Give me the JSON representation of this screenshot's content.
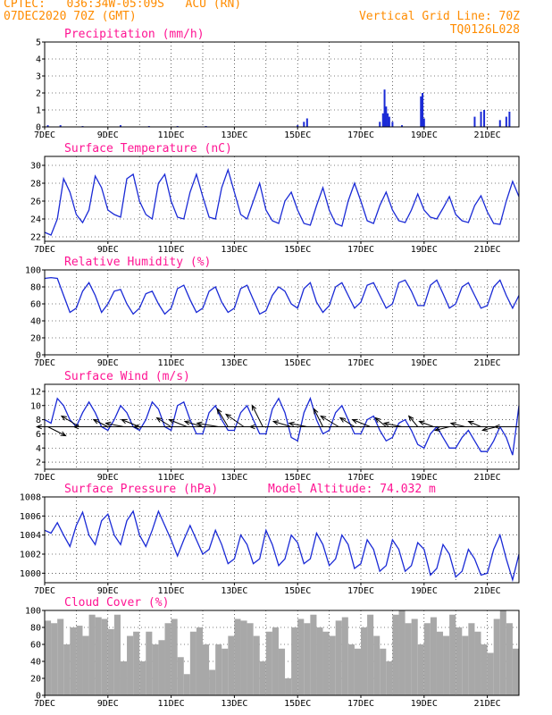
{
  "header": {
    "line1": "CPTEC:   036:34W-05:09S   ACU (RN)",
    "line2": "07DEC2020 70Z (GMT)",
    "right1": "Vertical Grid Line: 70Z",
    "right2": "TQ0126L028"
  },
  "colors": {
    "header": "#ff8c00",
    "title": "#ff1493",
    "series": "#1a2ad6",
    "cloud": "#a8a8a8",
    "arrow": "#000000"
  },
  "chart_data": [
    {
      "type": "bar",
      "title": "Precipitation (mm/h)",
      "xticks": [
        "7DEC",
        "9DEC",
        "11DEC",
        "13DEC",
        "15DEC",
        "17DEC",
        "19DEC",
        "21DEC"
      ],
      "ylim": [
        0,
        5
      ],
      "yticks": [
        0,
        1,
        2,
        3,
        4,
        5
      ],
      "x": [
        7.1,
        7.5,
        8.2,
        9.4,
        10.3,
        11.2,
        12.1,
        15.0,
        15.2,
        15.3,
        17.6,
        17.7,
        17.75,
        17.8,
        17.85,
        17.9,
        18.0,
        18.3,
        18.9,
        18.95,
        19.0,
        20.6,
        20.8,
        20.9,
        21.4,
        21.6,
        21.7
      ],
      "values": [
        0.1,
        0.1,
        0.05,
        0.1,
        0.05,
        0.05,
        0.05,
        0.1,
        0.3,
        0.5,
        0.3,
        0.8,
        2.2,
        1.2,
        0.8,
        0.6,
        0.3,
        0.1,
        1.8,
        2.0,
        0.5,
        0.6,
        0.9,
        1.0,
        0.4,
        0.6,
        0.9
      ]
    },
    {
      "type": "line",
      "title": "Surface Temperature (nC)",
      "xticks": [
        "7DEC",
        "9DEC",
        "11DEC",
        "13DEC",
        "15DEC",
        "17DEC",
        "19DEC",
        "21DEC"
      ],
      "ylim": [
        21.5,
        31
      ],
      "yticks": [
        22,
        24,
        26,
        28,
        30
      ],
      "x": [
        7.0,
        7.2,
        7.4,
        7.6,
        7.8,
        8.0,
        8.2,
        8.4,
        8.6,
        8.8,
        9.0,
        9.2,
        9.4,
        9.6,
        9.8,
        10.0,
        10.2,
        10.4,
        10.6,
        10.8,
        11.0,
        11.2,
        11.4,
        11.6,
        11.8,
        12.0,
        12.2,
        12.4,
        12.6,
        12.8,
        13.0,
        13.2,
        13.4,
        13.6,
        13.8,
        14.0,
        14.2,
        14.4,
        14.6,
        14.8,
        15.0,
        15.2,
        15.4,
        15.6,
        15.8,
        16.0,
        16.2,
        16.4,
        16.6,
        16.8,
        17.0,
        17.2,
        17.4,
        17.6,
        17.8,
        18.0,
        18.2,
        18.4,
        18.6,
        18.8,
        19.0,
        19.2,
        19.4,
        19.6,
        19.8,
        20.0,
        20.2,
        20.4,
        20.6,
        20.8,
        21.0,
        21.2,
        21.4,
        21.6,
        21.8,
        22.0
      ],
      "values": [
        22.5,
        22.2,
        24,
        28.5,
        27,
        24.5,
        23.6,
        25,
        28.8,
        27.5,
        25,
        24.5,
        24.2,
        28.5,
        29,
        26,
        24.5,
        24,
        28,
        29,
        26,
        24.2,
        24,
        27,
        29,
        26.5,
        24.2,
        24,
        27.5,
        29.5,
        27,
        24.5,
        24,
        26,
        28,
        25,
        23.8,
        23.5,
        26,
        27,
        25,
        23.5,
        23.3,
        25.5,
        27.5,
        25,
        23.5,
        23.2,
        26,
        28,
        26,
        23.8,
        23.5,
        25.5,
        27,
        25,
        23.8,
        23.6,
        25,
        26.8,
        25,
        24.2,
        24,
        25.2,
        26.5,
        24.5,
        23.8,
        23.6,
        25.5,
        26.6,
        24.8,
        23.5,
        23.4,
        26,
        28.2,
        26.5
      ]
    },
    {
      "type": "line",
      "title": "Relative Humidity (%)",
      "xticks": [
        "7DEC",
        "9DEC",
        "11DEC",
        "13DEC",
        "15DEC",
        "17DEC",
        "19DEC",
        "21DEC"
      ],
      "ylim": [
        0,
        100
      ],
      "yticks": [
        0,
        20,
        40,
        60,
        80,
        100
      ],
      "x": [
        7.0,
        7.2,
        7.4,
        7.6,
        7.8,
        8.0,
        8.2,
        8.4,
        8.6,
        8.8,
        9.0,
        9.2,
        9.4,
        9.6,
        9.8,
        10.0,
        10.2,
        10.4,
        10.6,
        10.8,
        11.0,
        11.2,
        11.4,
        11.6,
        11.8,
        12.0,
        12.2,
        12.4,
        12.6,
        12.8,
        13.0,
        13.2,
        13.4,
        13.6,
        13.8,
        14.0,
        14.2,
        14.4,
        14.6,
        14.8,
        15.0,
        15.2,
        15.4,
        15.6,
        15.8,
        16.0,
        16.2,
        16.4,
        16.6,
        16.8,
        17.0,
        17.2,
        17.4,
        17.6,
        17.8,
        18.0,
        18.2,
        18.4,
        18.6,
        18.8,
        19.0,
        19.2,
        19.4,
        19.6,
        19.8,
        20.0,
        20.2,
        20.4,
        20.6,
        20.8,
        21.0,
        21.2,
        21.4,
        21.6,
        21.8,
        22.0
      ],
      "values": [
        90,
        91,
        90,
        70,
        50,
        55,
        75,
        85,
        70,
        50,
        60,
        75,
        77,
        60,
        48,
        55,
        72,
        75,
        60,
        48,
        55,
        78,
        82,
        65,
        50,
        55,
        75,
        80,
        62,
        50,
        55,
        78,
        82,
        65,
        48,
        52,
        70,
        80,
        75,
        60,
        55,
        78,
        85,
        62,
        50,
        58,
        80,
        85,
        70,
        55,
        62,
        82,
        85,
        70,
        55,
        60,
        85,
        88,
        75,
        58,
        58,
        82,
        88,
        72,
        55,
        60,
        80,
        85,
        70,
        55,
        58,
        80,
        88,
        70,
        55,
        70
      ]
    },
    {
      "type": "line",
      "title": "Surface Wind (m/s)",
      "xticks": [
        "7DEC",
        "9DEC",
        "11DEC",
        "13DEC",
        "15DEC",
        "17DEC",
        "19DEC",
        "21DEC"
      ],
      "ylim": [
        1,
        13
      ],
      "yticks": [
        2,
        4,
        6,
        8,
        10,
        12
      ],
      "x": [
        7.0,
        7.2,
        7.4,
        7.6,
        7.8,
        8.0,
        8.2,
        8.4,
        8.6,
        8.8,
        9.0,
        9.2,
        9.4,
        9.6,
        9.8,
        10.0,
        10.2,
        10.4,
        10.6,
        10.8,
        11.0,
        11.2,
        11.4,
        11.6,
        11.8,
        12.0,
        12.2,
        12.4,
        12.6,
        12.8,
        13.0,
        13.2,
        13.4,
        13.6,
        13.8,
        14.0,
        14.2,
        14.4,
        14.6,
        14.8,
        15.0,
        15.2,
        15.4,
        15.6,
        15.8,
        16.0,
        16.2,
        16.4,
        16.6,
        16.8,
        17.0,
        17.2,
        17.4,
        17.6,
        17.8,
        18.0,
        18.2,
        18.4,
        18.6,
        18.8,
        19.0,
        19.2,
        19.4,
        19.6,
        19.8,
        20.0,
        20.2,
        20.4,
        20.6,
        20.8,
        21.0,
        21.2,
        21.4,
        21.6,
        21.8,
        22.0
      ],
      "values": [
        8,
        7.5,
        11,
        10,
        8,
        7,
        9,
        10.5,
        9,
        7,
        6.5,
        8,
        10,
        9,
        7,
        6.5,
        8,
        10.5,
        9.5,
        7,
        6.5,
        10,
        10.5,
        8,
        6,
        6,
        9,
        10,
        8,
        6.5,
        6.5,
        9,
        10,
        8,
        6,
        6,
        9.5,
        11,
        9,
        5.5,
        5,
        9,
        11,
        8,
        6,
        6.5,
        9,
        10,
        8,
        6,
        6,
        8,
        8.5,
        6.5,
        5,
        5.5,
        7.5,
        8,
        6.5,
        4.5,
        4,
        6,
        7,
        5.5,
        4,
        4,
        5.5,
        6.5,
        5,
        3.5,
        3.5,
        5,
        7,
        5.5,
        3,
        10
      ]
    },
    {
      "type": "line",
      "title": "Surface Pressure (hPa)",
      "note": "Model Altitude: 74.032 m",
      "xticks": [
        "7DEC",
        "9DEC",
        "11DEC",
        "13DEC",
        "15DEC",
        "17DEC",
        "19DEC",
        "21DEC"
      ],
      "ylim": [
        999,
        1008
      ],
      "yticks": [
        1000,
        1002,
        1004,
        1006,
        1008
      ],
      "x": [
        7.0,
        7.2,
        7.4,
        7.6,
        7.8,
        8.0,
        8.2,
        8.4,
        8.6,
        8.8,
        9.0,
        9.2,
        9.4,
        9.6,
        9.8,
        10.0,
        10.2,
        10.4,
        10.6,
        10.8,
        11.0,
        11.2,
        11.4,
        11.6,
        11.8,
        12.0,
        12.2,
        12.4,
        12.6,
        12.8,
        13.0,
        13.2,
        13.4,
        13.6,
        13.8,
        14.0,
        14.2,
        14.4,
        14.6,
        14.8,
        15.0,
        15.2,
        15.4,
        15.6,
        15.8,
        16.0,
        16.2,
        16.4,
        16.6,
        16.8,
        17.0,
        17.2,
        17.4,
        17.6,
        17.8,
        18.0,
        18.2,
        18.4,
        18.6,
        18.8,
        19.0,
        19.2,
        19.4,
        19.6,
        19.8,
        20.0,
        20.2,
        20.4,
        20.6,
        20.8,
        21.0,
        21.2,
        21.4,
        21.6,
        21.8,
        22.0
      ],
      "values": [
        1004.5,
        1004.2,
        1005.3,
        1004,
        1002.8,
        1005,
        1006.4,
        1004,
        1003,
        1005.5,
        1006.2,
        1004,
        1003,
        1005.5,
        1006.5,
        1004,
        1002.8,
        1004.5,
        1006.5,
        1005,
        1003.5,
        1001.8,
        1003.5,
        1005,
        1003.5,
        1002,
        1002.5,
        1004.5,
        1003,
        1001,
        1001.5,
        1004,
        1003,
        1001,
        1001.5,
        1004.5,
        1003,
        1000.8,
        1001.5,
        1004,
        1003.2,
        1001,
        1001.5,
        1004.2,
        1003,
        1000.8,
        1001.5,
        1004,
        1003,
        1000.5,
        1001,
        1003.5,
        1002.5,
        1000.2,
        1000.8,
        1003.5,
        1002.5,
        1000.2,
        1000.8,
        1003.2,
        1002.5,
        999.8,
        1000.5,
        1003,
        1002,
        999.6,
        1000.2,
        1002.5,
        1001.5,
        999.8,
        1000,
        1002.5,
        1004,
        1001.5,
        999.3,
        1002
      ]
    },
    {
      "type": "area",
      "title": "Cloud Cover (%)",
      "xticks": [
        "7DEC",
        "9DEC",
        "11DEC",
        "13DEC",
        "15DEC",
        "17DEC",
        "19DEC",
        "21DEC"
      ],
      "ylim": [
        0,
        100
      ],
      "yticks": [
        0,
        20,
        40,
        60,
        80,
        100
      ],
      "x": [
        7.0,
        7.2,
        7.4,
        7.6,
        7.8,
        8.0,
        8.2,
        8.4,
        8.6,
        8.8,
        9.0,
        9.2,
        9.4,
        9.6,
        9.8,
        10.0,
        10.2,
        10.4,
        10.6,
        10.8,
        11.0,
        11.2,
        11.4,
        11.6,
        11.8,
        12.0,
        12.2,
        12.4,
        12.6,
        12.8,
        13.0,
        13.2,
        13.4,
        13.6,
        13.8,
        14.0,
        14.2,
        14.4,
        14.6,
        14.8,
        15.0,
        15.2,
        15.4,
        15.6,
        15.8,
        16.0,
        16.2,
        16.4,
        16.6,
        16.8,
        17.0,
        17.2,
        17.4,
        17.6,
        17.8,
        18.0,
        18.2,
        18.4,
        18.6,
        18.8,
        19.0,
        19.2,
        19.4,
        19.6,
        19.8,
        20.0,
        20.2,
        20.4,
        20.6,
        20.8,
        21.0,
        21.2,
        21.4,
        21.6,
        21.8,
        22.0
      ],
      "values": [
        88,
        85,
        90,
        60,
        80,
        82,
        70,
        95,
        92,
        90,
        78,
        95,
        40,
        70,
        75,
        40,
        75,
        60,
        65,
        85,
        90,
        45,
        25,
        75,
        80,
        60,
        30,
        60,
        55,
        70,
        90,
        88,
        85,
        70,
        40,
        75,
        80,
        55,
        20,
        80,
        90,
        85,
        95,
        80,
        75,
        70,
        88,
        92,
        60,
        55,
        80,
        95,
        70,
        55,
        40,
        95,
        100,
        85,
        90,
        60,
        85,
        92,
        75,
        70,
        95,
        80,
        70,
        85,
        75,
        60,
        50,
        90,
        100,
        85,
        55,
        0
      ]
    }
  ],
  "wind_arrows": [
    {
      "x": 7.1,
      "u": 1.0,
      "v": -0.5
    },
    {
      "x": 7.6,
      "u": -1.5,
      "v": 0
    },
    {
      "x": 8.1,
      "u": -1.0,
      "v": 0.6
    },
    {
      "x": 8.6,
      "u": -1.2,
      "v": 0
    },
    {
      "x": 9.0,
      "u": -0.8,
      "v": 0.4
    },
    {
      "x": 9.5,
      "u": -1.0,
      "v": 0.2
    },
    {
      "x": 10.0,
      "u": -1.0,
      "v": 0.4
    },
    {
      "x": 10.5,
      "u": -1.2,
      "v": 0
    },
    {
      "x": 11.0,
      "u": -0.8,
      "v": 0.5
    },
    {
      "x": 11.5,
      "u": -1.0,
      "v": 0.4
    },
    {
      "x": 12.0,
      "u": -1.0,
      "v": 0.3
    },
    {
      "x": 12.5,
      "u": -1.2,
      "v": 0.2
    },
    {
      "x": 12.8,
      "u": -0.6,
      "v": 1.0
    },
    {
      "x": 13.3,
      "u": -1.0,
      "v": 0.7
    },
    {
      "x": 13.9,
      "u": -0.6,
      "v": 1.2
    },
    {
      "x": 14.4,
      "u": -1.6,
      "v": 0.0
    },
    {
      "x": 14.8,
      "u": -1.0,
      "v": 0.3
    },
    {
      "x": 15.3,
      "u": -1.0,
      "v": 0.2
    },
    {
      "x": 15.8,
      "u": -0.5,
      "v": 1.0
    },
    {
      "x": 16.3,
      "u": -1.0,
      "v": 0.6
    },
    {
      "x": 16.8,
      "u": -0.8,
      "v": 0.5
    },
    {
      "x": 17.3,
      "u": -1.0,
      "v": 0.4
    },
    {
      "x": 17.8,
      "u": -0.6,
      "v": 0.5
    },
    {
      "x": 18.3,
      "u": -1.0,
      "v": 0.2
    },
    {
      "x": 18.8,
      "u": -0.5,
      "v": 0.6
    },
    {
      "x": 19.3,
      "u": -0.8,
      "v": 0.3
    },
    {
      "x": 19.8,
      "u": -0.8,
      "v": -0.2
    },
    {
      "x": 20.3,
      "u": -0.8,
      "v": 0.2
    },
    {
      "x": 20.8,
      "u": -0.7,
      "v": 0.3
    },
    {
      "x": 21.3,
      "u": -0.8,
      "v": -0.2
    },
    {
      "x": 21.8,
      "u": -1.0,
      "v": 0.0
    }
  ]
}
